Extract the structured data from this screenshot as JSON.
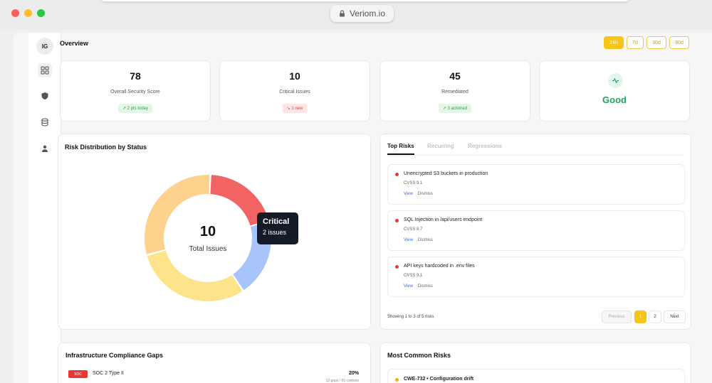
{
  "browser": {
    "url": "Veriom.io"
  },
  "sidebar": {
    "avatar_initials": "IG",
    "items": [
      {
        "icon": "grid-icon",
        "active": true
      },
      {
        "icon": "shield-icon",
        "active": false
      },
      {
        "icon": "database-icon",
        "active": false
      },
      {
        "icon": "user-icon",
        "active": false
      }
    ]
  },
  "header": {
    "title": "Overview",
    "ranges": [
      "24h",
      "7d",
      "30d",
      "90d"
    ],
    "active_range": "24h"
  },
  "stats": [
    {
      "value": "78",
      "label": "Overall Security Score",
      "badge": "↗ 2 pts today",
      "badge_tone": "green"
    },
    {
      "value": "10",
      "label": "Critical Issues",
      "badge": "↘ 1 new",
      "badge_tone": "red"
    },
    {
      "value": "45",
      "label": "Remediated",
      "badge": "↗ 3 actioned",
      "badge_tone": "green"
    }
  ],
  "health": {
    "status": "Good",
    "icon": "activity-icon",
    "color": "#1fa35c"
  },
  "risk_distribution": {
    "title": "Risk Distribution by Status",
    "total_value": "10",
    "total_label": "Total Issues",
    "tooltip": {
      "title": "Critical",
      "subtitle": "2 issues"
    },
    "chart_data": {
      "type": "pie",
      "values": [
        2,
        2,
        3,
        3
      ],
      "colors": [
        "#f26363",
        "#a8c5fb",
        "#fde38a",
        "#fcd28c"
      ],
      "total": 10
    }
  },
  "top_risks": {
    "tabs": [
      "Top Risks",
      "Recurring",
      "Regressions"
    ],
    "active_tab": "Top Risks",
    "items": [
      {
        "title": "Unencrypted S3 buckets in production",
        "cvss": "CVSS 9.1",
        "view": "View",
        "dismiss": "Dismiss"
      },
      {
        "title": "SQL Injection in /api/users endpoint",
        "cvss": "CVSS 8.7",
        "view": "View",
        "dismiss": "Dismiss"
      },
      {
        "title": "API keys hardcoded in .env files",
        "cvss": "CVSS 9.1",
        "view": "View",
        "dismiss": "Dismiss"
      }
    ],
    "showing": "Showing 1 to 3 of 5 risks",
    "pagination": {
      "previous": "Previous",
      "pages": [
        "1",
        "2"
      ],
      "current": "1",
      "next": "Next"
    }
  },
  "compliance": {
    "title": "Infrastructure Compliance Gaps",
    "items": [
      {
        "badge": "SOC",
        "name": "SOC 2 Type II",
        "percent": "20%",
        "detail": "12 gaps / 60 controls"
      }
    ]
  },
  "common_risks": {
    "title": "Most Common Risks",
    "items": [
      {
        "title": "CWE-732 • Configuration drift"
      }
    ]
  }
}
